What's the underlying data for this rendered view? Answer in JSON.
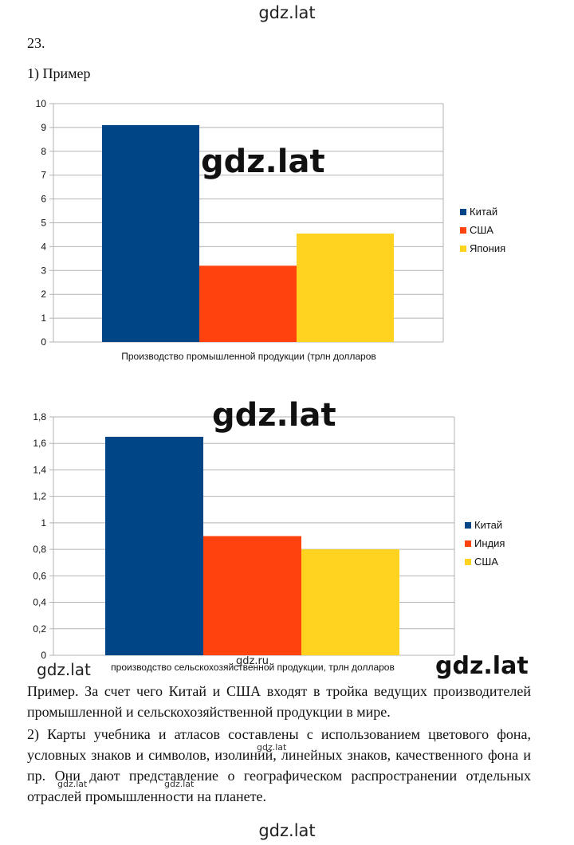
{
  "watermarks": {
    "top": "gdz.lat",
    "big1": "gdz.lat",
    "big2": "gdz.lat",
    "left": "gdz.lat",
    "right": "gdz.lat",
    "tiny_ru": "gdz.ru",
    "tiny": "gdz.lat",
    "bottom": "gdz.lat"
  },
  "task_number": "23.",
  "subheading": "1) Пример",
  "colors": {
    "blue": "#004586",
    "orange": "#ff420e",
    "yellow": "#ffd320",
    "grid": "#b3b3b3"
  },
  "chart_data": [
    {
      "type": "bar",
      "xlabel": "Производство промышленной продукции (трлн долларов",
      "ylim": [
        0,
        10
      ],
      "yticks": [
        "0",
        "1",
        "2",
        "3",
        "4",
        "5",
        "6",
        "7",
        "8",
        "9",
        "10"
      ],
      "series": [
        {
          "name": "Китай",
          "values": [
            9.1
          ]
        },
        {
          "name": "США",
          "values": [
            3.2
          ]
        },
        {
          "name": "Япония",
          "values": [
            4.55
          ]
        }
      ],
      "legend": "right",
      "grid": true
    },
    {
      "type": "bar",
      "xlabel": "производство сельскохозяйственной продукции, трлн долларов",
      "ylim": [
        0,
        1.8
      ],
      "yticks": [
        "0",
        "0,2",
        "0,4",
        "0,6",
        "0,8",
        "1",
        "1,2",
        "1,4",
        "1,6",
        "1,8"
      ],
      "series": [
        {
          "name": "Китай",
          "values": [
            1.65
          ]
        },
        {
          "name": "Индия",
          "values": [
            0.9
          ]
        },
        {
          "name": "США",
          "values": [
            0.8
          ]
        }
      ],
      "legend": "right",
      "grid": true
    }
  ],
  "paragraph1": "Пример. За счет чего Китай и США входят в тройка ведущих производителей промышленной и сельскохозяйственной продукции в мире.",
  "paragraph2": "2) Карты учебника и атласов составлены с использованием цветового фона, условных знаков и символов, изолиний, линейных знаков, качественного фона и пр. Они дают представление о географическом распространении отдельных отраслей промышленности на планете."
}
